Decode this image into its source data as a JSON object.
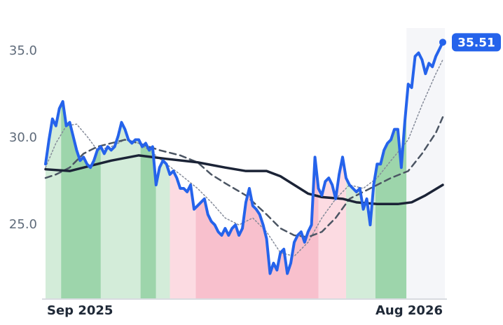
{
  "chart_data": {
    "type": "line",
    "xticks": [
      {
        "value": 0,
        "label": "Sep 2025"
      },
      {
        "value": 115,
        "label": "Aug 2026"
      }
    ],
    "xlim": [
      0,
      115
    ],
    "ylim": [
      20.73,
      36.33
    ],
    "yticks": [
      {
        "value": 25,
        "label": "25.0"
      },
      {
        "value": 30,
        "label": "30.0"
      },
      {
        "value": 35,
        "label": "35.0"
      }
    ],
    "grid": false,
    "regions": [
      {
        "start": 0,
        "end": 4.5,
        "color": "#d3ecd9"
      },
      {
        "start": 4.5,
        "end": 16,
        "color": "#9dd5ab"
      },
      {
        "start": 16,
        "end": 27.5,
        "color": "#d3ecd9"
      },
      {
        "start": 27.5,
        "end": 32,
        "color": "#9dd5ab"
      },
      {
        "start": 32,
        "end": 36,
        "color": "#d3ecd9"
      },
      {
        "start": 36,
        "end": 43.5,
        "color": "#fcdbe2"
      },
      {
        "start": 43.5,
        "end": 79,
        "color": "#f8c0cd"
      },
      {
        "start": 79,
        "end": 87,
        "color": "#fcdbe2"
      },
      {
        "start": 87,
        "end": 95.5,
        "color": "#d3ecd9"
      },
      {
        "start": 95.5,
        "end": 104.5,
        "color": "#9dd5ab"
      },
      {
        "start": 104.5,
        "end": 115.6,
        "color": "#f5f6f9",
        "full": true
      }
    ],
    "series": [
      {
        "color": "#2563eb",
        "width": 4,
        "style": "solid",
        "values": [
          28.5,
          29.9,
          31.1,
          30.7,
          31.7,
          32.1,
          30.7,
          30.9,
          30.1,
          29.3,
          28.7,
          28.9,
          28.5,
          28.3,
          28.7,
          29.3,
          29.5,
          29.1,
          29.5,
          29.3,
          29.5,
          30.1,
          30.9,
          30.5,
          29.9,
          29.7,
          29.9,
          29.9,
          29.5,
          29.7,
          29.3,
          29.5,
          27.3,
          28.3,
          28.7,
          28.5,
          27.9,
          28.1,
          27.7,
          27.1,
          27.1,
          26.9,
          27.3,
          25.9,
          26.1,
          26.3,
          26.5,
          25.6,
          25.2,
          25.0,
          24.6,
          24.4,
          24.8,
          24.4,
          24.8,
          25.0,
          24.4,
          24.8,
          26.3,
          27.1,
          26.1,
          25.9,
          25.6,
          25.0,
          24.2,
          22.2,
          22.8,
          22.4,
          23.4,
          23.6,
          22.2,
          22.8,
          24.0,
          24.4,
          24.6,
          24.0,
          24.6,
          25.0,
          28.9,
          27.1,
          26.7,
          27.5,
          27.7,
          27.3,
          26.5,
          27.9,
          28.9,
          27.7,
          27.3,
          27.1,
          26.9,
          27.1,
          25.9,
          26.5,
          25.0,
          27.3,
          28.5,
          28.5,
          29.3,
          29.7,
          29.9,
          30.5,
          30.5,
          28.3,
          30.9,
          33.1,
          32.9,
          34.7,
          34.9,
          34.5,
          33.7,
          34.3,
          34.1,
          34.7,
          35.1,
          35.51
        ]
      },
      {
        "color": "#858b99",
        "width": 1.5,
        "style": "dotted",
        "x": [
          0,
          3,
          6,
          9,
          12,
          15,
          19,
          23,
          27,
          30,
          35,
          39,
          44,
          48,
          52,
          56,
          60,
          64,
          68,
          72,
          76,
          80,
          84,
          88,
          92,
          96,
          100,
          105,
          109,
          113,
          115
        ],
        "values": [
          28.3,
          29.7,
          30.7,
          30.8,
          30.1,
          29.3,
          29.5,
          29.9,
          29.7,
          29.3,
          28.5,
          27.9,
          27.1,
          26.3,
          25.4,
          25.0,
          25.4,
          24.6,
          23.4,
          23.2,
          24.0,
          25.4,
          26.5,
          27.3,
          27.1,
          27.7,
          28.7,
          29.9,
          31.9,
          33.7,
          34.5
        ]
      },
      {
        "color": "#4b5563",
        "width": 2.5,
        "style": "dashed",
        "x": [
          0,
          3,
          7,
          11,
          15,
          19,
          23,
          27,
          33,
          39,
          44,
          48,
          52,
          58,
          64,
          68,
          72,
          76,
          80,
          84,
          88,
          92,
          96,
          100,
          105,
          109,
          113,
          115
        ],
        "values": [
          27.7,
          27.9,
          28.3,
          29.1,
          29.5,
          29.7,
          29.9,
          29.7,
          29.3,
          29.0,
          28.6,
          27.9,
          27.4,
          26.7,
          25.6,
          24.8,
          24.4,
          24.3,
          24.6,
          25.4,
          26.5,
          26.9,
          27.3,
          27.7,
          28.1,
          29.1,
          30.3,
          31.2
        ]
      },
      {
        "color": "#1b2336",
        "width": 3.5,
        "style": "solid",
        "x": [
          0,
          7,
          13,
          19,
          27,
          35,
          44,
          52,
          58,
          64,
          68,
          72,
          76,
          80,
          86,
          90,
          96,
          102,
          106,
          110,
          115
        ],
        "values": [
          28.2,
          28.1,
          28.4,
          28.7,
          29.0,
          28.8,
          28.6,
          28.3,
          28.1,
          28.1,
          27.8,
          27.3,
          26.8,
          26.6,
          26.5,
          26.3,
          26.2,
          26.2,
          26.3,
          26.7,
          27.3
        ]
      }
    ]
  }
}
